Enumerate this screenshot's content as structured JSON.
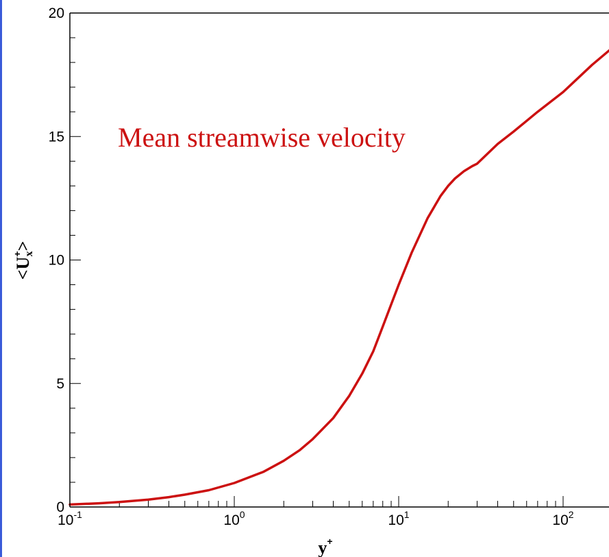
{
  "chart_data": {
    "type": "line",
    "title": "",
    "annotation": "Mean streamwise velocity",
    "xlabel": {
      "base": "y",
      "sup": "+"
    },
    "ylabel": {
      "open": "<",
      "base": "U",
      "sup": "+",
      "sub": "x",
      "close": ">"
    },
    "xscale": "log",
    "xlim": [
      0.1,
      200
    ],
    "ylim": [
      0,
      20
    ],
    "x_ticks": [
      {
        "base": "10",
        "exp": "-1",
        "value": 0.1
      },
      {
        "base": "10",
        "exp": "0",
        "value": 1
      },
      {
        "base": "10",
        "exp": "1",
        "value": 10
      },
      {
        "base": "10",
        "exp": "2",
        "value": 100
      }
    ],
    "y_ticks": [
      {
        "label": "0",
        "value": 0
      },
      {
        "label": "5",
        "value": 5
      },
      {
        "label": "10",
        "value": 10
      },
      {
        "label": "15",
        "value": 15
      },
      {
        "label": "20",
        "value": 20
      }
    ],
    "grid": false,
    "colors": {
      "line": "#cc1111",
      "annotation": "#cc1111",
      "frame_edge": "#3a5bd9"
    },
    "series": [
      {
        "x": [
          0.1,
          0.15,
          0.2,
          0.3,
          0.4,
          0.5,
          0.7,
          1.0,
          1.5,
          2.0,
          2.5,
          3.0,
          4.0,
          5.0,
          6.0,
          7.0,
          8.0,
          9.0,
          10.0,
          12.0,
          15.0,
          18.0,
          20.0,
          22.0,
          25.0,
          28.0,
          30.0,
          40.0,
          50.0,
          70.0,
          100.0,
          150.0,
          200.0
        ],
        "y": [
          0.1,
          0.15,
          0.2,
          0.3,
          0.4,
          0.5,
          0.68,
          0.97,
          1.42,
          1.87,
          2.3,
          2.75,
          3.6,
          4.5,
          5.4,
          6.3,
          7.3,
          8.2,
          9.0,
          10.3,
          11.7,
          12.6,
          13.0,
          13.3,
          13.6,
          13.8,
          13.9,
          14.7,
          15.2,
          16.0,
          16.8,
          17.9,
          18.6
        ]
      }
    ]
  }
}
